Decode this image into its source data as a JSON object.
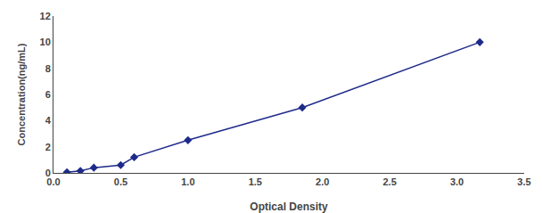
{
  "chart_data": {
    "type": "line",
    "x": [
      0.1,
      0.2,
      0.3,
      0.5,
      0.6,
      1.0,
      1.85,
      3.17
    ],
    "values": [
      0.05,
      0.15,
      0.4,
      0.6,
      1.2,
      2.5,
      5.0,
      10.0
    ],
    "color": "#1e2a8a",
    "marker": "diamond",
    "line_style": "solid",
    "xlabel": "Optical Density",
    "ylabel": "Concentration(ng/mL)",
    "xlim": [
      0.0,
      3.5
    ],
    "ylim": [
      0,
      12
    ],
    "xticks": [
      {
        "value": 0,
        "label": "0.0"
      },
      0.5,
      {
        "value": 1,
        "label": "1.0"
      },
      1.5,
      {
        "value": 2,
        "label": "2.0"
      },
      2.5,
      {
        "value": 3,
        "label": "3.0"
      },
      3.5
    ],
    "yticks": [
      0,
      2,
      4,
      6,
      8,
      10,
      12
    ],
    "grid": false
  }
}
